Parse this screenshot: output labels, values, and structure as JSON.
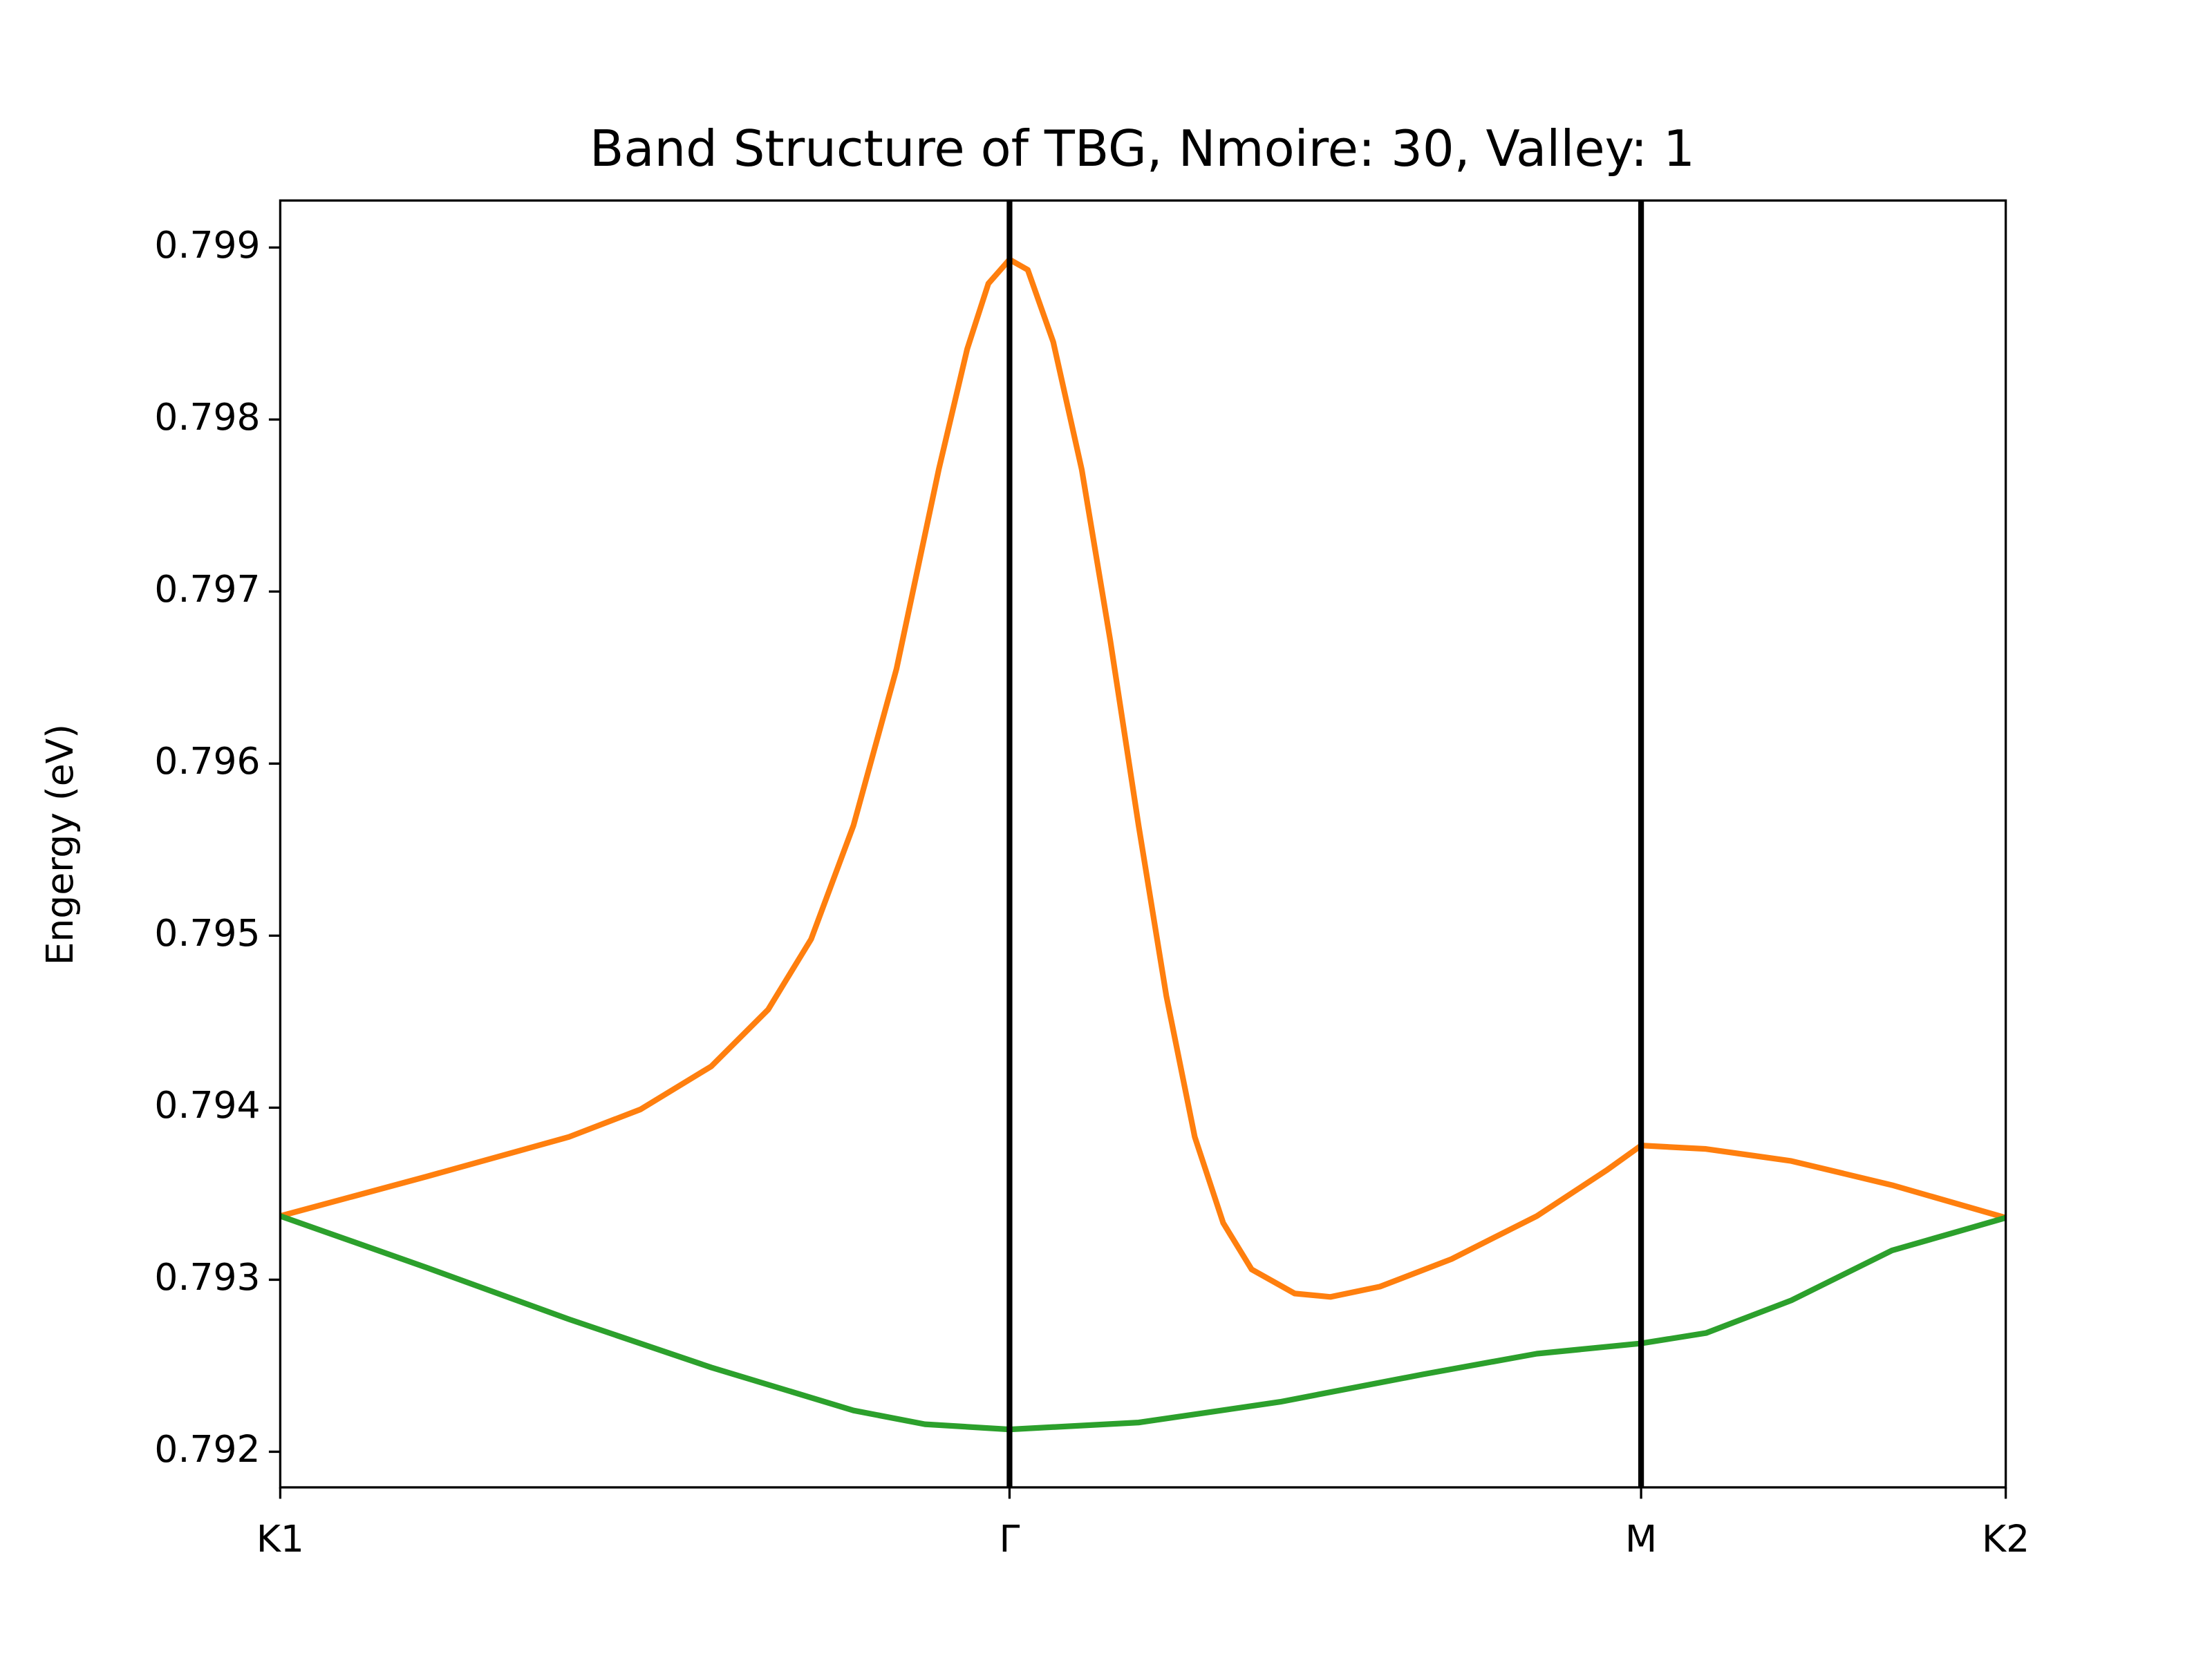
{
  "chart_data": {
    "type": "line",
    "title": "Band Structure of TBG, Nmoire: 30, Valley: 1",
    "y_label": "Engergy (eV)",
    "xlim": [
      0,
      2.366
    ],
    "xticks": [
      {
        "value": 0,
        "label": "K1"
      },
      {
        "value": 1,
        "label": "Γ"
      },
      {
        "value": 1.866,
        "label": "M"
      },
      {
        "value": 2.366,
        "label": "K2"
      }
    ],
    "vertical_lines_at_xticks": true,
    "ylim": [
      0.791793,
      0.799273
    ],
    "yticks": [
      0.792,
      0.793,
      0.794,
      0.795,
      0.796,
      0.797,
      0.798,
      0.799
    ],
    "grid": false,
    "series": [
      {
        "color": "#ff7f0e",
        "x": [
          0,
          0.201,
          0.396,
          0.494,
          0.591,
          0.669,
          0.728,
          0.786,
          0.845,
          0.903,
          0.942,
          0.971,
          1.0,
          1.025,
          1.06,
          1.099,
          1.138,
          1.177,
          1.215,
          1.254,
          1.293,
          1.332,
          1.391,
          1.44,
          1.508,
          1.606,
          1.723,
          1.82,
          1.866,
          1.955,
          2.072,
          2.21,
          2.366
        ],
        "values": [
          0.79337,
          0.7936,
          0.79383,
          0.79399,
          0.79424,
          0.79457,
          0.79498,
          0.79564,
          0.79655,
          0.79771,
          0.79841,
          0.79879,
          0.79893,
          0.79887,
          0.79845,
          0.79771,
          0.79672,
          0.79564,
          0.79465,
          0.79383,
          0.79333,
          0.79306,
          0.79292,
          0.7929,
          0.79296,
          0.79312,
          0.79337,
          0.79364,
          0.79378,
          0.79376,
          0.79369,
          0.79355,
          0.79336
        ]
      },
      {
        "color": "#2ca02c",
        "x": [
          0,
          0.201,
          0.396,
          0.591,
          0.786,
          0.884,
          1.0,
          1.177,
          1.371,
          1.567,
          1.723,
          1.866,
          1.955,
          2.072,
          2.21,
          2.366
        ],
        "values": [
          0.79337,
          0.79307,
          0.79277,
          0.79249,
          0.79224,
          0.79216,
          0.79213,
          0.79217,
          0.79229,
          0.79245,
          0.79257,
          0.79263,
          0.79269,
          0.79288,
          0.79317,
          0.79336
        ]
      }
    ]
  }
}
